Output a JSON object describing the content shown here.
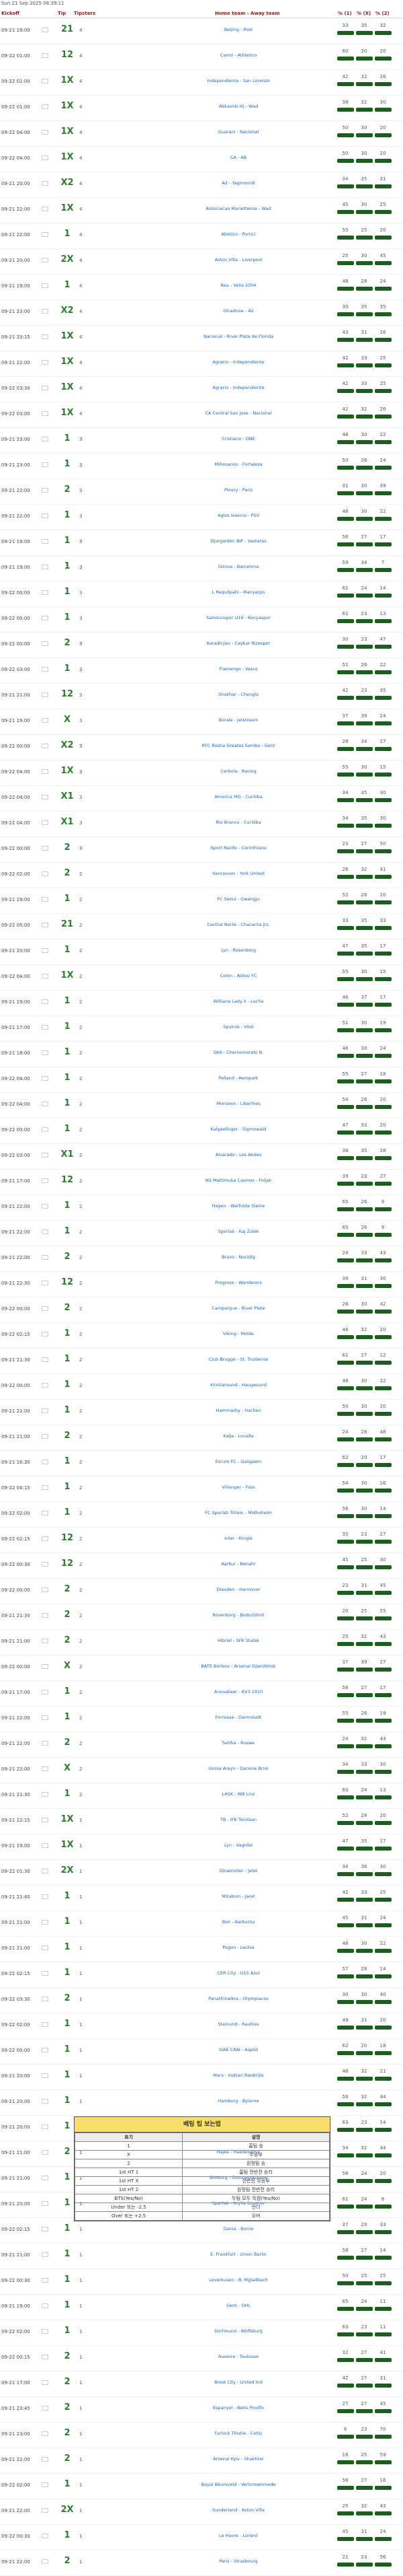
{
  "timestamp": "Sun 21 Sep 2025 08:39:11",
  "header": {
    "kickoff": "Kickoff",
    "tip": "Tip",
    "tipsters": "Tipsters",
    "match": "Home team - Away team",
    "p1": "% (1)",
    "px": "% (X)",
    "p2": "% (2)"
  },
  "rows": [
    {
      "time": "09-21 19:00",
      "tip": "21",
      "odd": "4",
      "match": "Beijing - Post",
      "p1": "33",
      "px": "35",
      "p2": "32"
    },
    {
      "time": "09-22 01:00",
      "tip": "12",
      "odd": "4",
      "match": "Carmi - Athletico",
      "p1": "60",
      "px": "20",
      "p2": "20"
    },
    {
      "time": "09-22 01:00",
      "tip": "1X",
      "odd": "4",
      "match": "Independiente - San Lorenzo",
      "p1": "42",
      "px": "32",
      "p2": "26"
    },
    {
      "time": "09-22 01:00",
      "tip": "1X",
      "odd": "4",
      "match": "Abkasids IQ - Wad",
      "p1": "38",
      "px": "32",
      "p2": "30"
    },
    {
      "time": "09-22 04:00",
      "tip": "1X",
      "odd": "4",
      "match": "Guarani - Nacional",
      "p1": "50",
      "px": "30",
      "p2": "20"
    },
    {
      "time": "09-22 04:00",
      "tip": "1X",
      "odd": "4",
      "match": "CA - AB",
      "p1": "50",
      "px": "30",
      "p2": "20"
    },
    {
      "time": "09-21 20:00",
      "tip": "X2",
      "odd": "4",
      "match": "A2 - Yagmoordi",
      "p1": "34",
      "px": "35",
      "p2": "31"
    },
    {
      "time": "09-21 22:00",
      "tip": "1X",
      "odd": "4",
      "match": "Associacao Mariettense - Wad",
      "p1": "45",
      "px": "30",
      "p2": "25"
    },
    {
      "time": "09-21 22:00",
      "tip": "1",
      "odd": "4",
      "match": "Atletico - Portici",
      "p1": "55",
      "px": "25",
      "p2": "20"
    },
    {
      "time": "09-21 20:00",
      "tip": "2X",
      "odd": "4",
      "match": "Aston Villa - Liverpool",
      "p1": "25",
      "px": "30",
      "p2": "45"
    },
    {
      "time": "09-21 19:00",
      "tip": "1",
      "odd": "4",
      "match": "Rea - Vella 2004",
      "p1": "48",
      "px": "28",
      "p2": "24"
    },
    {
      "time": "09-21 23:00",
      "tip": "X2",
      "odd": "4",
      "match": "Otradnoe - A2",
      "p1": "30",
      "px": "35",
      "p2": "35"
    },
    {
      "time": "09-21 23:15",
      "tip": "1X",
      "odd": "4",
      "match": "Nacional - River Plate de Florida",
      "p1": "43",
      "px": "31",
      "p2": "26"
    },
    {
      "time": "09-21 22:00",
      "tip": "1X",
      "odd": "4",
      "match": "Agrario - Independiente",
      "p1": "42",
      "px": "33",
      "p2": "25"
    },
    {
      "time": "09-22 03:30",
      "tip": "1X",
      "odd": "4",
      "match": "Agrario - Independiente",
      "p1": "42",
      "px": "33",
      "p2": "25"
    },
    {
      "time": "09-22 03:00",
      "tip": "1X",
      "odd": "4",
      "match": "CA Central San Jose - Nacional",
      "p1": "42",
      "px": "32",
      "p2": "26"
    },
    {
      "time": "09-21 23:00",
      "tip": "1",
      "odd": "3",
      "match": "Cristiano - ONE",
      "p1": "48",
      "px": "30",
      "p2": "22"
    },
    {
      "time": "09-21 23:00",
      "tip": "1",
      "odd": "3",
      "match": "Millonarios - Fortaleza",
      "p1": "50",
      "px": "26",
      "p2": "24"
    },
    {
      "time": "09-21 22:00",
      "tip": "2",
      "odd": "3",
      "match": "Pleury - Paris",
      "p1": "31",
      "px": "30",
      "p2": "39"
    },
    {
      "time": "09-21 22:00",
      "tip": "1",
      "odd": "3",
      "match": "Agios Ioannis - PSV",
      "p1": "48",
      "px": "30",
      "p2": "22"
    },
    {
      "time": "09-21 19:00",
      "tip": "1",
      "odd": "3",
      "match": "Djurgarden BIF - Vasteras",
      "p1": "56",
      "px": "27",
      "p2": "17"
    },
    {
      "time": "09-21 19:00",
      "tip": "1",
      "odd": "3",
      "match": "Girona - Barcelona",
      "p1": "59",
      "px": "34",
      "p2": "7"
    },
    {
      "time": "09-22 00:00",
      "tip": "1",
      "odd": "3",
      "match": "L Requilpahi - Manyarpo",
      "p1": "62",
      "px": "24",
      "p2": "14"
    },
    {
      "time": "09-22 00:00",
      "tip": "1",
      "odd": "3",
      "match": "Samsunspor U19 - Konyaspor",
      "p1": "61",
      "px": "23",
      "p2": "13"
    },
    {
      "time": "09-22 00:00",
      "tip": "2",
      "odd": "3",
      "match": "Karadiryev - Caykur Rizespor",
      "p1": "30",
      "px": "23",
      "p2": "47"
    },
    {
      "time": "09-22 03:00",
      "tip": "1",
      "odd": "3",
      "match": "Flamengo - Vasco",
      "p1": "51",
      "px": "26",
      "p2": "22"
    },
    {
      "time": "09-21 21:00",
      "tip": "12",
      "odd": "3",
      "match": "Shakhar - Chenglo",
      "p1": "42",
      "px": "23",
      "p2": "35"
    },
    {
      "time": "09-21 19:00",
      "tip": "X",
      "odd": "3",
      "match": "Borale - Jetstream",
      "p1": "37",
      "px": "39",
      "p2": "24"
    },
    {
      "time": "09-22 00:00",
      "tip": "X2",
      "odd": "3",
      "match": "RFC Rosha Greates Samba - Gent",
      "p1": "28",
      "px": "34",
      "p2": "27"
    },
    {
      "time": "09-22 04:00",
      "tip": "1X",
      "odd": "3",
      "match": "Cerbola - Racing",
      "p1": "55",
      "px": "30",
      "p2": "15"
    },
    {
      "time": "09-22 04:00",
      "tip": "X1",
      "odd": "3",
      "match": "America MG - Curitiba",
      "p1": "34",
      "px": "35",
      "p2": "30"
    },
    {
      "time": "09-22 04:00",
      "tip": "X1",
      "odd": "3",
      "match": "Rio Branco - Curitiba",
      "p1": "34",
      "px": "35",
      "p2": "30"
    },
    {
      "time": "09-22 00:00",
      "tip": "2",
      "odd": "3",
      "match": "Sport Recife - Corinthians",
      "p1": "23",
      "px": "27",
      "p2": "50"
    },
    {
      "time": "09-22 02:00",
      "tip": "2",
      "odd": "2",
      "match": "Vancouver - York United",
      "p1": "26",
      "px": "32",
      "p2": "41"
    },
    {
      "time": "09-21 19:00",
      "tip": "1",
      "odd": "2",
      "match": "FC Seoul - Gwangju",
      "p1": "52",
      "px": "28",
      "p2": "20"
    },
    {
      "time": "09-22 05:00",
      "tip": "21",
      "odd": "2",
      "match": "Central Norte - Chacarita Jrs.",
      "p1": "33",
      "px": "35",
      "p2": "33"
    },
    {
      "time": "09-21 20:00",
      "tip": "1",
      "odd": "2",
      "match": "Lyn - Rosenborg",
      "p1": "47",
      "px": "35",
      "p2": "17"
    },
    {
      "time": "09-22 04:00",
      "tip": "1X",
      "odd": "2",
      "match": "Colon - Aldosi FC",
      "p1": "55",
      "px": "30",
      "p2": "15"
    },
    {
      "time": "09-21 19:00",
      "tip": "1",
      "odd": "2",
      "match": "Williana Lady II - Lucha",
      "p1": "46",
      "px": "37",
      "p2": "17"
    },
    {
      "time": "09-21 17:00",
      "tip": "1",
      "odd": "2",
      "match": "Sputnik - Vitel",
      "p1": "51",
      "px": "30",
      "p2": "19"
    },
    {
      "time": "09-21 18:00",
      "tip": "1",
      "odd": "2",
      "match": "SKA - Chernomorets N.",
      "p1": "46",
      "px": "30",
      "p2": "24"
    },
    {
      "time": "09-22 04:00",
      "tip": "1",
      "odd": "2",
      "match": "Pelland - Aeropark",
      "p1": "55",
      "px": "27",
      "p2": "18"
    },
    {
      "time": "09-22 04:00",
      "tip": "1",
      "odd": "2",
      "match": "Monsoon - Liberfoes",
      "p1": "54",
      "px": "26",
      "p2": "20"
    },
    {
      "time": "09-22 00:00",
      "tip": "1",
      "odd": "2",
      "match": "Kalgeelinger - Sigmowald",
      "p1": "47",
      "px": "33",
      "p2": "20"
    },
    {
      "time": "09-22 03:00",
      "tip": "X1",
      "odd": "2",
      "match": "Alvarado - Los Andes",
      "p1": "38",
      "px": "35",
      "p2": "28"
    },
    {
      "time": "09-21 17:00",
      "tip": "12",
      "odd": "2",
      "match": "NS Mattimuka Casinos - Foljak",
      "p1": "39",
      "px": "23",
      "p2": "27"
    },
    {
      "time": "09-21 22:00",
      "tip": "1",
      "odd": "2",
      "match": "Hagen - Warfolda Steine",
      "p1": "65",
      "px": "26",
      "p2": "9"
    },
    {
      "time": "09-21 22:00",
      "tip": "1",
      "odd": "2",
      "match": "Sporlab - Kaj Zalek",
      "p1": "65",
      "px": "26",
      "p2": "9"
    },
    {
      "time": "09-21 22:00",
      "tip": "2",
      "odd": "2",
      "match": "Bravo - Nucidig",
      "p1": "24",
      "px": "33",
      "p2": "43"
    },
    {
      "time": "09-21 22:30",
      "tip": "12",
      "odd": "2",
      "match": "Progreso - Wanderers",
      "p1": "39",
      "px": "31",
      "p2": "30"
    },
    {
      "time": "09-22 00:00",
      "tip": "2",
      "odd": "2",
      "match": "Campargue - River Plate",
      "p1": "28",
      "px": "30",
      "p2": "42"
    },
    {
      "time": "09-22 02:15",
      "tip": "1",
      "odd": "2",
      "match": "Viking - Molde",
      "p1": "48",
      "px": "32",
      "p2": "20"
    },
    {
      "time": "09-21 21:30",
      "tip": "1",
      "odd": "2",
      "match": "Club Brugge - St. Truidense",
      "p1": "61",
      "px": "27",
      "p2": "12"
    },
    {
      "time": "09-22 00:00",
      "tip": "1",
      "odd": "2",
      "match": "Kristiansund - Haugesund",
      "p1": "48",
      "px": "30",
      "p2": "22"
    },
    {
      "time": "09-21 21:00",
      "tip": "1",
      "odd": "2",
      "match": "Hammarby - Hacken",
      "p1": "50",
      "px": "30",
      "p2": "20"
    },
    {
      "time": "09-21 21:00",
      "tip": "2",
      "odd": "2",
      "match": "Kalja - Lovalla",
      "p1": "24",
      "px": "28",
      "p2": "48"
    },
    {
      "time": "09-21 16:30",
      "tip": "1",
      "odd": "2",
      "match": "Esrum FC - Gangsem",
      "p1": "62",
      "px": "20",
      "p2": "17"
    },
    {
      "time": "09-22 04:15",
      "tip": "1",
      "odd": "2",
      "match": "Villanger - Foss",
      "p1": "54",
      "px": "30",
      "p2": "16"
    },
    {
      "time": "09-22 02:00",
      "tip": "1",
      "odd": "2",
      "match": "FC Sporlab Tritem - Midhoheim",
      "p1": "56",
      "px": "30",
      "p2": "14"
    },
    {
      "time": "09-22 02:15",
      "tip": "12",
      "odd": "2",
      "match": "Inter - Kingle",
      "p1": "35",
      "px": "23",
      "p2": "27"
    },
    {
      "time": "09-22 00:30",
      "tip": "12",
      "odd": "2",
      "match": "Aarkur - Benahr",
      "p1": "45",
      "px": "25",
      "p2": "30"
    },
    {
      "time": "09-22 00:00",
      "tip": "2",
      "odd": "2",
      "match": "Dresden - Hannover",
      "p1": "23",
      "px": "31",
      "p2": "45"
    },
    {
      "time": "09-21 21:30",
      "tip": "2",
      "odd": "2",
      "match": "Rosenborg - Bodo/Glimt",
      "p1": "20",
      "px": "25",
      "p2": "55"
    },
    {
      "time": "09-21 21:00",
      "tip": "2",
      "odd": "2",
      "match": "Hibriel - SFK Stalak",
      "p1": "25",
      "px": "32",
      "p2": "43"
    },
    {
      "time": "09-22 00:00",
      "tip": "X",
      "odd": "2",
      "match": "BATE Borisov - Arsenal Dzerzhinsk",
      "p1": "37",
      "px": "39",
      "p2": "27"
    },
    {
      "time": "09-21 17:00",
      "tip": "1",
      "odd": "2",
      "match": "Annualiser - KV3 1910",
      "p1": "56",
      "px": "27",
      "p2": "17"
    },
    {
      "time": "09-21 22:00",
      "tip": "1",
      "odd": "2",
      "match": "Forrease - Darmstadt",
      "p1": "55",
      "px": "26",
      "p2": "19"
    },
    {
      "time": "09-21 22:00",
      "tip": "2",
      "odd": "2",
      "match": "Setiha - Ruswe",
      "p1": "24",
      "px": "32",
      "p2": "43"
    },
    {
      "time": "09-21 22:00",
      "tip": "X",
      "odd": "2",
      "match": "Gonia Areyn - Danone Brno",
      "p1": "34",
      "px": "33",
      "p2": "30"
    },
    {
      "time": "09-21 21:30",
      "tip": "1",
      "odd": "2",
      "match": "LASK - WB Linz",
      "p1": "63",
      "px": "24",
      "p2": "13"
    },
    {
      "time": "09-21 22:15",
      "tip": "1X",
      "odd": "1",
      "match": "TB - IFK Tendaan",
      "p1": "52",
      "px": "28",
      "p2": "20"
    },
    {
      "time": "09-21 19:00",
      "tip": "1X",
      "odd": "1",
      "match": "Lyn - Vagrdal",
      "p1": "47",
      "px": "35",
      "p2": "17"
    },
    {
      "time": "09-22 01:30",
      "tip": "2X",
      "odd": "1",
      "match": "Dinamoder - Jelet",
      "p1": "34",
      "px": "36",
      "p2": "30"
    },
    {
      "time": "09-21 21:40",
      "tip": "1",
      "odd": "1",
      "match": "Mitaboin - Jaret",
      "p1": "42",
      "px": "33",
      "p2": "25"
    },
    {
      "time": "09-21 21:00",
      "tip": "1",
      "odd": "1",
      "match": "Biel - Aarbunta",
      "p1": "45",
      "px": "31",
      "p2": "24"
    },
    {
      "time": "09-21 21:00",
      "tip": "1",
      "odd": "1",
      "match": "Pogon - Lechia",
      "p1": "48",
      "px": "30",
      "p2": "22"
    },
    {
      "time": "09-22 02:15",
      "tip": "1",
      "odd": "1",
      "match": "CER City - U15 Azul",
      "p1": "57",
      "px": "28",
      "p2": "14"
    },
    {
      "time": "09-22 03:30",
      "tip": "2",
      "odd": "1",
      "match": "Panathinaikos - Olympiacos",
      "p1": "30",
      "px": "30",
      "p2": "40"
    },
    {
      "time": "09-22 02:00",
      "tip": "1",
      "odd": "1",
      "match": "Steinund - Raufoss",
      "p1": "49",
      "px": "31",
      "p2": "20"
    },
    {
      "time": "09-22 00:00",
      "tip": "1",
      "odd": "1",
      "match": "SIAE CRAI - Asplid",
      "p1": "62",
      "px": "20",
      "p2": "18"
    },
    {
      "time": "09-21 20:00",
      "tip": "1",
      "odd": "1",
      "match": "Mars - Vuktan Ranbrijle",
      "p1": "48",
      "px": "32",
      "p2": "21"
    },
    {
      "time": "09-21 20:00",
      "tip": "1",
      "odd": "1",
      "match": "Hamburg - Bylarne",
      "p1": "56",
      "px": "32",
      "p2": "44"
    },
    {
      "time": "09-21 20:00",
      "tip": "1",
      "odd": "1",
      "match": "Kobenhavn - Silkeborg",
      "p1": "63",
      "px": "23",
      "p2": "14"
    },
    {
      "time": "09-21 21:00",
      "tip": "2",
      "odd": "1",
      "match": "Hajke - Haedelijnhik",
      "p1": "34",
      "px": "32",
      "p2": "44"
    },
    {
      "time": "09-21 21:00",
      "tip": "1",
      "odd": "1",
      "match": "Simburg - Gronnepolsbane",
      "p1": "56",
      "px": "24",
      "p2": "20"
    },
    {
      "time": "09-21 20:00",
      "tip": "1",
      "odd": "1",
      "match": "Spartak - Krylia Sovetov",
      "p1": "61",
      "px": "24",
      "p2": "8"
    },
    {
      "time": "09-22 02:15",
      "tip": "1",
      "odd": "1",
      "match": "Dania - Borne",
      "p1": "37",
      "px": "29",
      "p2": "33"
    },
    {
      "time": "09-21 21:00",
      "tip": "1",
      "odd": "1",
      "match": "E. Frankfurt - Union Berlin",
      "p1": "58",
      "px": "27",
      "p2": "14"
    },
    {
      "time": "09-22 00:30",
      "tip": "1",
      "odd": "1",
      "match": "Leverkusen - B. Mgladbach",
      "p1": "50",
      "px": "25",
      "p2": "25"
    },
    {
      "time": "09-21 19:00",
      "tip": "1",
      "odd": "1",
      "match": "Gent - OHL",
      "p1": "65",
      "px": "24",
      "p2": "11"
    },
    {
      "time": "09-22 02:00",
      "tip": "1",
      "odd": "1",
      "match": "Dortmund - Wolfsburg",
      "p1": "63",
      "px": "23",
      "p2": "11"
    },
    {
      "time": "09-22 00:15",
      "tip": "2",
      "odd": "1",
      "match": "Auxerre - Toulouse",
      "p1": "32",
      "px": "27",
      "p2": "41"
    },
    {
      "time": "09-21 17:00",
      "tip": "2",
      "odd": "1",
      "match": "Brest City - United Ind",
      "p1": "42",
      "px": "27",
      "p2": "31"
    },
    {
      "time": "09-21 23:45",
      "tip": "2",
      "odd": "1",
      "match": "Espanyol - Betis Pinoflo",
      "p1": "27",
      "px": "27",
      "p2": "45"
    },
    {
      "time": "09-21 23:00",
      "tip": "2",
      "odd": "1",
      "match": "Furlock Thistle - Celtic",
      "p1": "9",
      "px": "23",
      "p2": "70"
    },
    {
      "time": "09-21 22:00",
      "tip": "2",
      "odd": "1",
      "match": "Arsenal Kyiv - Shakhtar",
      "p1": "16",
      "px": "25",
      "p2": "59"
    },
    {
      "time": "09-22 02:00",
      "tip": "1",
      "odd": "1",
      "match": "Bayal Beursveld - Vertsmammede",
      "p1": "56",
      "px": "27",
      "p2": "16"
    },
    {
      "time": "09-21 22:00",
      "tip": "2X",
      "odd": "1",
      "match": "Sunderland - Aston Villa",
      "p1": "25",
      "px": "32",
      "p2": "43"
    },
    {
      "time": "09-22 00:30",
      "tip": "1",
      "odd": "1",
      "match": "Le Havre - Lorient",
      "p1": "45",
      "px": "31",
      "p2": "24"
    },
    {
      "time": "09-21 22:00",
      "tip": "2",
      "odd": "1",
      "match": "Paris - Strasbourg",
      "p1": "21",
      "px": "23",
      "p2": "56"
    }
  ],
  "legend": {
    "title": "베팅 팁 보는법",
    "head": [
      "표기",
      "설명"
    ],
    "rows": [
      [
        "1",
        "홈팀 승"
      ],
      [
        "X",
        "무승부"
      ],
      [
        "2",
        "원정팀 승"
      ],
      [
        "1st HT 1",
        "홈팀 전반전 승리"
      ],
      [
        "1st HT X",
        "전반전 무승부"
      ],
      [
        "1st HT 2",
        "원정팀 전반전 승리"
      ],
      [
        "BTS(Yes/No)",
        "두팀 모두 득점(Yes/No)"
      ],
      [
        "Under 또는 -2.5",
        "언더"
      ],
      [
        "Over 또는 +2.5",
        "오버"
      ]
    ]
  },
  "colors": {
    "tip": "#2e7d32",
    "odds_badge": "#1b5e20",
    "match_link": "#1565c0",
    "header": "#8b1f1f",
    "legend_title_bg": "#f7df68"
  }
}
